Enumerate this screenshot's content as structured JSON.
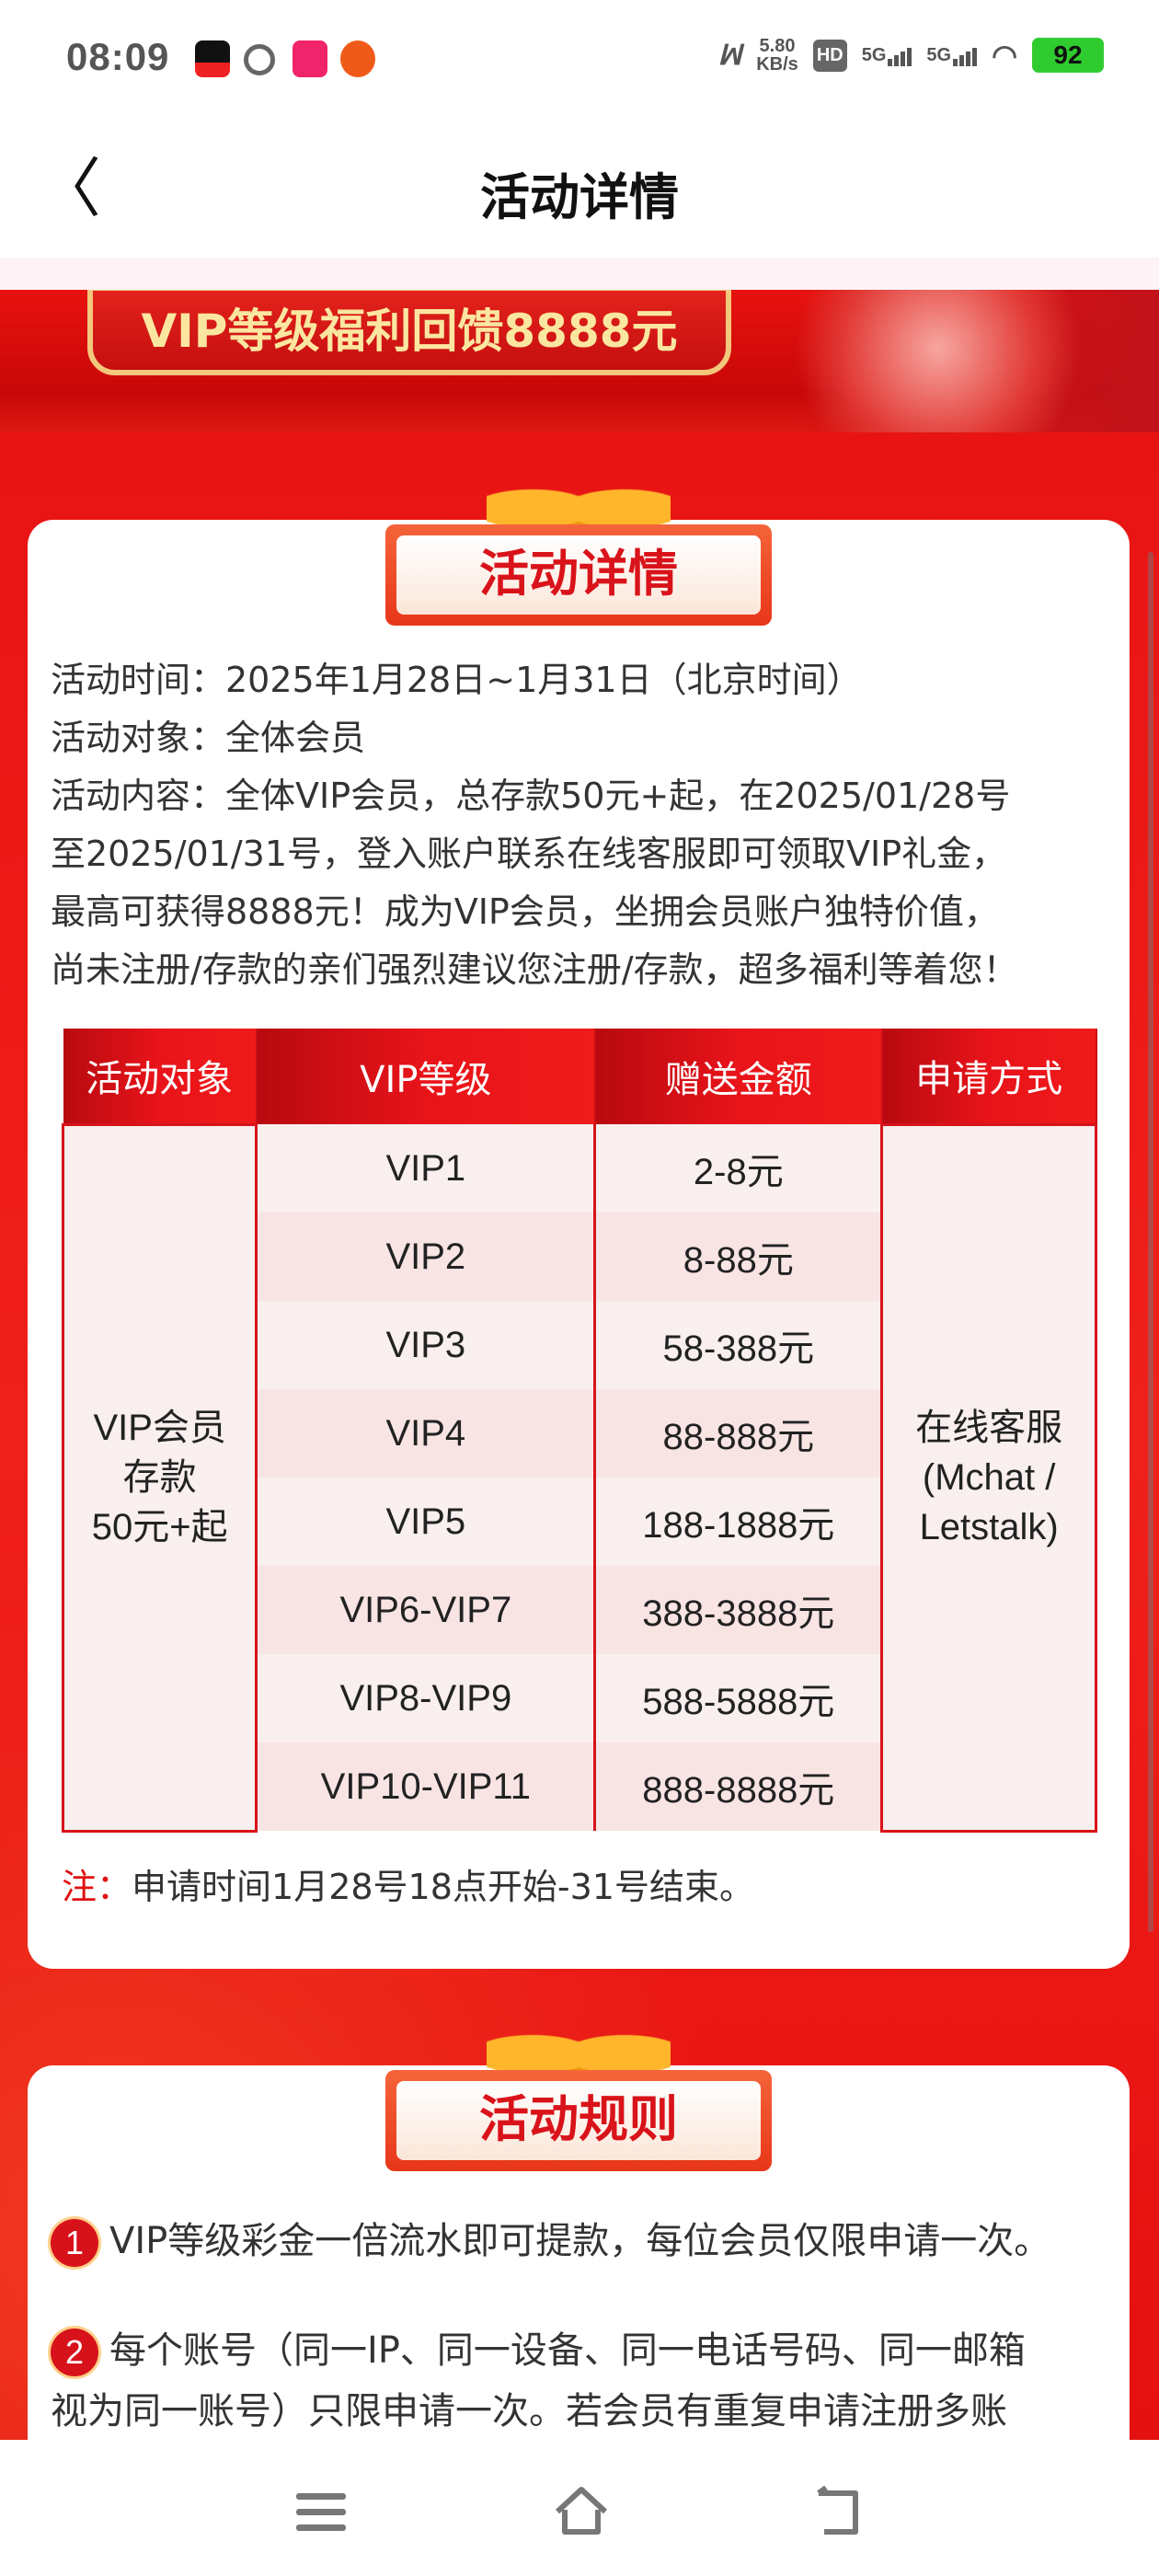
{
  "status_bar": {
    "time": "08:09",
    "speed_value": "5.80",
    "speed_unit": "KB/s",
    "hd": "HD",
    "sim1": "5G",
    "sim2": "5G",
    "battery": "92"
  },
  "header": {
    "back_icon": "chevron-left-icon",
    "title": "活动详情"
  },
  "banner": {
    "title": "VIP等级福利回馈8888元"
  },
  "details_card": {
    "ribbon_title": "活动详情",
    "lines": [
      "活动时间：2025年1月28日~1月31日（北京时间）",
      "活动对象：全体会员",
      "活动内容：全体VIP会员，总存款50元+起，在2025/01/28号",
      "至2025/01/31号，登入账户联系在线客服即可领取VIP礼金，",
      "最高可获得8888元！成为VIP会员，坐拥会员账户独特价值，",
      "尚未注册/存款的亲们强烈建议您注册/存款，超多福利等着您！"
    ],
    "table": {
      "headers": [
        "活动对象",
        "VIP等级",
        "赠送金额",
        "申请方式"
      ],
      "target": [
        "VIP会员",
        "存款",
        "50元+起"
      ],
      "method": [
        "在线客服",
        "(Mchat /",
        "Letstalk)"
      ],
      "rows": [
        {
          "level": "VIP1",
          "amount": "2-8元"
        },
        {
          "level": "VIP2",
          "amount": "8-88元"
        },
        {
          "level": "VIP3",
          "amount": "58-388元"
        },
        {
          "level": "VIP4",
          "amount": "88-888元"
        },
        {
          "level": "VIP5",
          "amount": "188-1888元"
        },
        {
          "level": "VIP6-VIP7",
          "amount": "388-3888元"
        },
        {
          "level": "VIP8-VIP9",
          "amount": "588-5888元"
        },
        {
          "level": "VIP10-VIP11",
          "amount": "888-8888元"
        }
      ]
    },
    "note_label": "注：",
    "note_text": "申请时间1月28号18点开始-31号结束。"
  },
  "rules_card": {
    "ribbon_title": "活动规则",
    "rules": [
      {
        "num": "1",
        "lines": [
          "VIP等级彩金一倍流水即可提款，每位会员仅限申请一次。"
        ]
      },
      {
        "num": "2",
        "lines": [
          "每个账号（同一IP、同一设备、同一电话号码、同一邮箱",
          "视为同一账号）只限申请一次。若会员有重复申请注册多账"
        ]
      }
    ]
  },
  "nav": {
    "menu_icon": "menu-icon",
    "home_icon": "home-icon",
    "back_icon": "back-icon"
  }
}
